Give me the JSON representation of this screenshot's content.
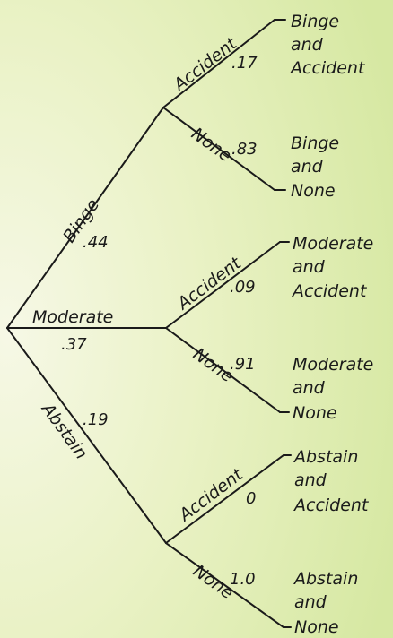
{
  "tree": {
    "branches": [
      {
        "label": "Binge",
        "prob": ".44",
        "outcomes": [
          {
            "label": "Accident",
            "prob": ".17",
            "result": [
              "Binge",
              "and",
              "Accident"
            ]
          },
          {
            "label": "None",
            "prob": ".83",
            "result": [
              "Binge",
              "and",
              "None"
            ]
          }
        ]
      },
      {
        "label": "Moderate",
        "prob": ".37",
        "outcomes": [
          {
            "label": "Accident",
            "prob": ".09",
            "result": [
              "Moderate",
              "and",
              "Accident"
            ]
          },
          {
            "label": "None",
            "prob": ".91",
            "result": [
              "Moderate",
              "and",
              "None"
            ]
          }
        ]
      },
      {
        "label": "Abstain",
        "prob": ".19",
        "outcomes": [
          {
            "label": "Accident",
            "prob": "0",
            "result": [
              "Abstain",
              "and",
              "Accident"
            ]
          },
          {
            "label": "None",
            "prob": "1.0",
            "result": [
              "Abstain",
              "and",
              "None"
            ]
          }
        ]
      }
    ]
  }
}
